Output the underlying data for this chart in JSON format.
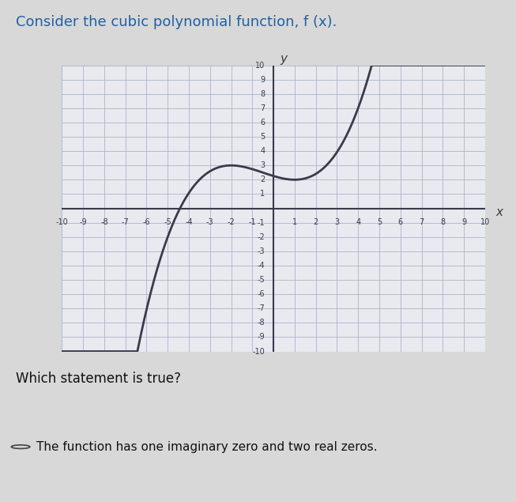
{
  "title": "Consider the cubic polynomial function, f (x).",
  "statement": "Which statement is true?",
  "answer": "The function has one imaginary zero and two real zeros.",
  "xmin": -10,
  "xmax": 10,
  "ymin": -10,
  "ymax": 10,
  "bg_color": "#d8d8d8",
  "plot_bg_color": "#e8eaf0",
  "grid_color": "#a0a8c0",
  "curve_color": "#3a3a4a",
  "axis_color": "#3a3a4a",
  "curve_lw": 2.0,
  "title_fontsize": 13,
  "statement_fontsize": 12,
  "answer_fontsize": 11
}
